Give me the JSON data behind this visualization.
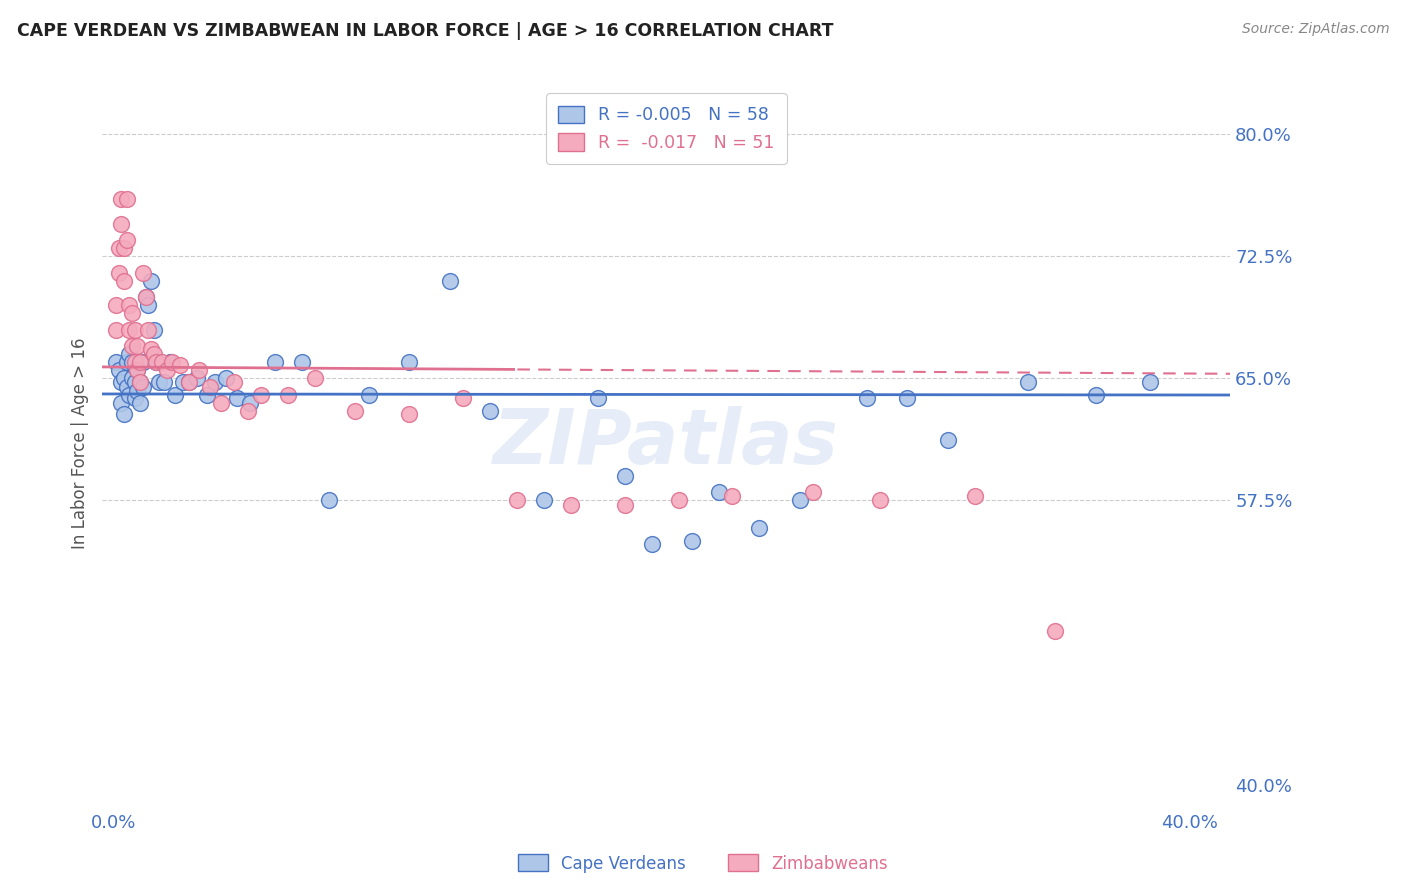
{
  "title": "CAPE VERDEAN VS ZIMBABWEAN IN LABOR FORCE | AGE > 16 CORRELATION CHART",
  "source": "Source: ZipAtlas.com",
  "ylabel": "In Labor Force | Age > 16",
  "y_tick_labels": [
    "80.0%",
    "72.5%",
    "65.0%",
    "57.5%",
    "40.0%"
  ],
  "y_tick_values": [
    0.8,
    0.725,
    0.65,
    0.575,
    0.4
  ],
  "x_lim": [
    -0.004,
    0.415
  ],
  "y_lim": [
    0.385,
    0.835
  ],
  "cv_color": "#aec6e8",
  "zw_color": "#f4abbe",
  "cv_edge_color": "#4472c4",
  "zw_edge_color": "#e07090",
  "cv_line_color": "#4472c4",
  "zw_line_color": "#e07090",
  "background_color": "#ffffff",
  "watermark": "ZIPatlas",
  "cape_verdeans_x": [
    0.001,
    0.002,
    0.003,
    0.003,
    0.004,
    0.004,
    0.005,
    0.005,
    0.006,
    0.006,
    0.007,
    0.007,
    0.008,
    0.008,
    0.009,
    0.009,
    0.01,
    0.01,
    0.011,
    0.011,
    0.012,
    0.013,
    0.014,
    0.015,
    0.016,
    0.017,
    0.019,
    0.021,
    0.023,
    0.026,
    0.028,
    0.031,
    0.035,
    0.038,
    0.042,
    0.046,
    0.051,
    0.06,
    0.07,
    0.08,
    0.095,
    0.11,
    0.125,
    0.14,
    0.16,
    0.18,
    0.2,
    0.225,
    0.255,
    0.28,
    0.31,
    0.34,
    0.365,
    0.385,
    0.19,
    0.215,
    0.24,
    0.295
  ],
  "cape_verdeans_y": [
    0.66,
    0.655,
    0.648,
    0.635,
    0.65,
    0.628,
    0.66,
    0.645,
    0.665,
    0.64,
    0.66,
    0.65,
    0.648,
    0.638,
    0.655,
    0.642,
    0.648,
    0.635,
    0.66,
    0.645,
    0.7,
    0.695,
    0.71,
    0.68,
    0.66,
    0.648,
    0.648,
    0.66,
    0.64,
    0.648,
    0.648,
    0.65,
    0.64,
    0.648,
    0.65,
    0.638,
    0.635,
    0.66,
    0.66,
    0.575,
    0.64,
    0.66,
    0.71,
    0.63,
    0.575,
    0.638,
    0.548,
    0.58,
    0.575,
    0.638,
    0.612,
    0.648,
    0.64,
    0.648,
    0.59,
    0.55,
    0.558,
    0.638
  ],
  "zimbabweans_x": [
    0.001,
    0.001,
    0.002,
    0.002,
    0.003,
    0.003,
    0.004,
    0.004,
    0.005,
    0.005,
    0.006,
    0.006,
    0.007,
    0.007,
    0.008,
    0.008,
    0.009,
    0.009,
    0.01,
    0.01,
    0.011,
    0.012,
    0.013,
    0.014,
    0.015,
    0.016,
    0.018,
    0.02,
    0.022,
    0.025,
    0.028,
    0.032,
    0.036,
    0.04,
    0.045,
    0.05,
    0.055,
    0.065,
    0.075,
    0.09,
    0.11,
    0.13,
    0.15,
    0.17,
    0.19,
    0.21,
    0.23,
    0.26,
    0.285,
    0.32,
    0.35
  ],
  "zimbabweans_y": [
    0.695,
    0.68,
    0.73,
    0.715,
    0.76,
    0.745,
    0.73,
    0.71,
    0.76,
    0.735,
    0.695,
    0.68,
    0.69,
    0.67,
    0.68,
    0.66,
    0.67,
    0.655,
    0.66,
    0.648,
    0.715,
    0.7,
    0.68,
    0.668,
    0.665,
    0.66,
    0.66,
    0.655,
    0.66,
    0.658,
    0.648,
    0.655,
    0.645,
    0.635,
    0.648,
    0.63,
    0.64,
    0.64,
    0.65,
    0.63,
    0.628,
    0.638,
    0.575,
    0.572,
    0.572,
    0.575,
    0.578,
    0.58,
    0.575,
    0.578,
    0.495
  ]
}
